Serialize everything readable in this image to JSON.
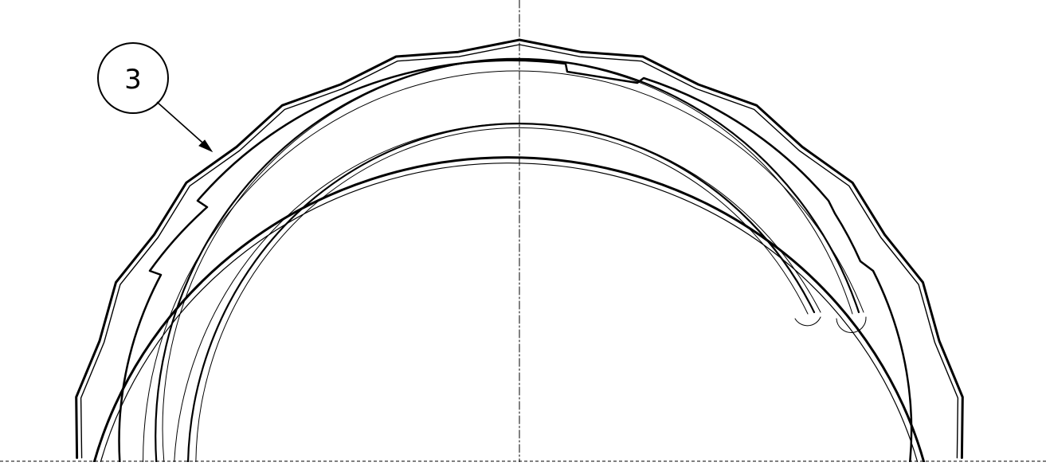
{
  "callout": {
    "number": "3"
  },
  "colors": {
    "line": "#000000",
    "background": "#ffffff"
  }
}
